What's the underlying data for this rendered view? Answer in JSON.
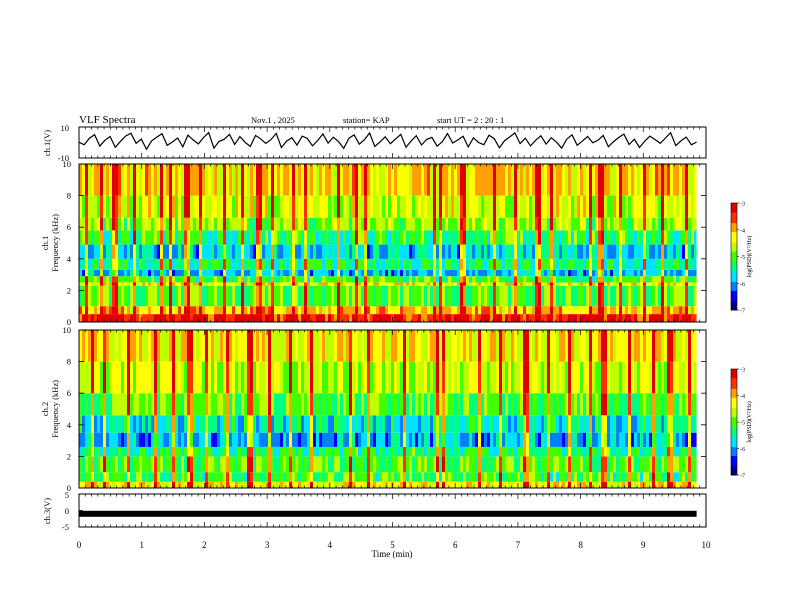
{
  "header": {
    "title": "VLF  Spectra",
    "date": "Nov.1  , 2025",
    "station": "station= KAP",
    "start": "start  UT  =   2  : 20 : 1"
  },
  "chart_data": [
    {
      "type": "line",
      "name": "ch1-waveform",
      "ylabel": "ch.1(V)",
      "ylim": [
        -10,
        10
      ],
      "yticks": [
        "10",
        "-10"
      ],
      "xlim": [
        0,
        9.85
      ],
      "values": [
        0.2,
        -1.5,
        2.8,
        5.1,
        -2.3,
        1.4,
        3.9,
        -3.1,
        0.8,
        4.2,
        6.0,
        -0.5,
        2.2,
        -4.4,
        1.1,
        3.5,
        5.7,
        -1.9,
        0.3,
        2.9,
        -2.8,
        4.8,
        1.6,
        -0.9,
        3.2,
        6.4,
        -3.6,
        0.7,
        2.1,
        5.3,
        -1.2,
        3.8,
        0.1,
        -2.5,
        4.5,
        2.4,
        -0.6,
        1.9,
        5.9,
        -3.3,
        0.9,
        3.1,
        -1.7,
        4.1,
        2.6,
        -2.1,
        1.3,
        5.5,
        -0.4,
        3.4,
        0.6,
        -3.8,
        2.7,
        4.9,
        -1.1,
        1.8,
        6.1,
        -2.6,
        0.4,
        3.7,
        -0.8,
        2.3,
        5.2,
        -3.0,
        1.0,
        4.4,
        -1.6,
        2.0,
        3.3,
        -2.4,
        0.5,
        5.8,
        -0.3,
        1.7,
        4.0,
        -2.9,
        3.0,
        0.0,
        -1.4,
        4.7,
        2.5,
        -3.4,
        1.2,
        3.6,
        6.2,
        -0.7,
        2.8,
        -2.2,
        1.5,
        4.3,
        -1.0,
        3.1,
        0.2,
        -3.7,
        2.2,
        5.0,
        -1.8,
        0.9,
        3.9,
        -0.2,
        1.4,
        4.6,
        -2.7,
        0.6,
        3.2,
        5.4,
        -1.3,
        2.1,
        -3.2,
        0.8,
        4.1,
        1.9,
        -0.5,
        2.9,
        6.3,
        -2.0,
        1.1,
        3.5,
        -1.5,
        0.3
      ]
    },
    {
      "type": "heatmap",
      "name": "ch1-spectrogram",
      "ylabel": "ch.1",
      "ylabel2": "Frequency  (kHz)",
      "ylim": [
        0,
        10
      ],
      "yticks": [
        "0",
        "2",
        "4",
        "6",
        "8",
        "10"
      ],
      "xlim": [
        0,
        9.85
      ],
      "bands": [
        {
          "f0": 0.0,
          "f1": 0.5,
          "level": -3.4
        },
        {
          "f0": 0.5,
          "f1": 1.0,
          "level": -4.0
        },
        {
          "f0": 1.0,
          "f1": 2.3,
          "level": -5.0
        },
        {
          "f0": 2.3,
          "f1": 2.5,
          "level": -4.3
        },
        {
          "f0": 2.5,
          "f1": 2.9,
          "level": -5.1
        },
        {
          "f0": 2.9,
          "f1": 3.3,
          "level": -5.9
        },
        {
          "f0": 3.3,
          "f1": 4.0,
          "level": -5.4
        },
        {
          "f0": 4.0,
          "f1": 4.9,
          "level": -5.8
        },
        {
          "f0": 4.9,
          "f1": 5.8,
          "level": -5.2
        },
        {
          "f0": 5.8,
          "f1": 6.6,
          "level": -4.8
        },
        {
          "f0": 6.6,
          "f1": 8.0,
          "level": -4.5
        },
        {
          "f0": 8.0,
          "f1": 10.0,
          "level": -4.2
        }
      ],
      "sferic_minutes": [
        0.1,
        0.35,
        0.55,
        0.85,
        1.3,
        1.45,
        1.7,
        1.9,
        2.3,
        2.6,
        2.85,
        3.05,
        3.4,
        3.6,
        4.1,
        4.4,
        4.55,
        5.65,
        5.75,
        6.1,
        6.6,
        6.95,
        7.3,
        7.5,
        8.15,
        8.3,
        8.6,
        9.0,
        9.3,
        9.65
      ]
    },
    {
      "type": "heatmap",
      "name": "ch2-spectrogram",
      "ylabel": "ch.2",
      "ylabel2": "Frequency  (kHz)",
      "ylim": [
        0,
        10
      ],
      "yticks": [
        "0",
        "2",
        "4",
        "6",
        "8",
        "10"
      ],
      "xlim": [
        0,
        9.85
      ],
      "bands": [
        {
          "f0": 0.0,
          "f1": 0.4,
          "level": -4.3
        },
        {
          "f0": 0.4,
          "f1": 1.0,
          "level": -5.1
        },
        {
          "f0": 1.0,
          "f1": 2.0,
          "level": -5.0
        },
        {
          "f0": 2.0,
          "f1": 2.6,
          "level": -5.3
        },
        {
          "f0": 2.6,
          "f1": 3.5,
          "level": -5.9
        },
        {
          "f0": 3.5,
          "f1": 4.6,
          "level": -5.6
        },
        {
          "f0": 4.6,
          "f1": 6.0,
          "level": -5.0
        },
        {
          "f0": 6.0,
          "f1": 8.0,
          "level": -4.6
        },
        {
          "f0": 8.0,
          "f1": 10.0,
          "level": -4.3
        }
      ],
      "sferic_minutes": [
        0.2,
        0.4,
        0.75,
        1.2,
        1.5,
        1.75,
        2.0,
        2.35,
        2.7,
        3.0,
        3.35,
        3.7,
        4.3,
        4.6,
        5.15,
        5.7,
        5.8,
        6.35,
        6.7,
        7.1,
        7.45,
        7.8,
        8.15,
        8.35,
        8.75,
        9.15,
        9.4,
        9.7
      ]
    },
    {
      "type": "line",
      "name": "ch3-waveform",
      "ylabel": "ch.3(V)",
      "ylim": [
        -5,
        5
      ],
      "yticks": [
        "5",
        "0",
        "-5"
      ],
      "xlim": [
        0,
        9.85
      ],
      "values": [
        -1.0,
        -1.0
      ]
    }
  ],
  "x_axis": {
    "label": "Time  (min)",
    "range": [
      0,
      10
    ],
    "ticks": [
      "0",
      "1",
      "2",
      "3",
      "4",
      "5",
      "6",
      "7",
      "8",
      "9",
      "10"
    ]
  },
  "colorbar": {
    "label": "log(PSD)(V²/Hz)",
    "range": [
      -7,
      -3
    ],
    "ticks": [
      "-3",
      "-4",
      "-5",
      "-6",
      "-7"
    ],
    "colors": [
      "#000080",
      "#0000ff",
      "#0080ff",
      "#00e0ff",
      "#00ff80",
      "#40ff00",
      "#c0ff00",
      "#ffff00",
      "#ffa000",
      "#ff3000",
      "#e00000",
      "#ffffff"
    ]
  }
}
